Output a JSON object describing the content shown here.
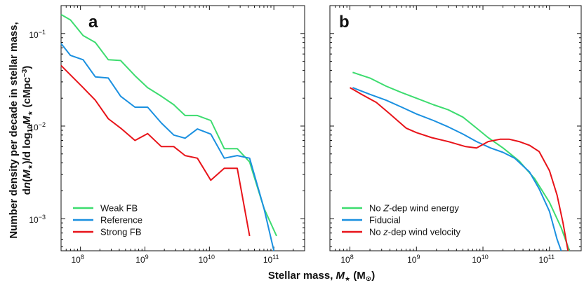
{
  "ylabel_line1": "Number density per decade in stellar mass,",
  "ylabel_line2_prefix": "d",
  "ylabel_line2_n": "n",
  "ylabel_line2_open": "(",
  "ylabel_line2_M": "M",
  "ylabel_line2_star": "★",
  "ylabel_line2_mid": ")/d log",
  "ylabel_line2_sub10": "10",
  "ylabel_line2_M2": "M",
  "ylabel_line2_star2": "★",
  "ylabel_line2_units": " (cMpc",
  "ylabel_line2_exp": "−3",
  "ylabel_line2_close": ")",
  "xlabel_prefix": "Stellar mass, ",
  "xlabel_M": "M",
  "xlabel_star": "★",
  "xlabel_units": " (M",
  "xlabel_sun": "⊙",
  "xlabel_close": ")",
  "chart_data": [
    {
      "type": "line",
      "panel": "a",
      "xscale": "log",
      "yscale": "log",
      "xlim": [
        50000000,
        300000000000
      ],
      "ylim": [
        0.00045,
        0.2
      ],
      "xticks": [
        {
          "base": "10",
          "exp": "8",
          "value": 100000000
        },
        {
          "base": "10",
          "exp": "9",
          "value": 1000000000
        },
        {
          "base": "10",
          "exp": "10",
          "value": 10000000000
        },
        {
          "base": "10",
          "exp": "11",
          "value": 100000000000
        }
      ],
      "yticks": [
        {
          "base": "10",
          "exp": "−1",
          "value": 0.1
        },
        {
          "base": "10",
          "exp": "−2",
          "value": 0.01
        },
        {
          "base": "10",
          "exp": "−3",
          "value": 0.001
        }
      ],
      "legend_position": "bottom-left",
      "series": [
        {
          "name": "Weak FB",
          "color": "#3ddc6f",
          "points": [
            [
              50000000,
              0.16
            ],
            [
              70000000,
              0.14
            ],
            [
              110000000,
              0.095
            ],
            [
              170000000,
              0.08
            ],
            [
              270000000,
              0.052
            ],
            [
              420000000,
              0.051
            ],
            [
              700000000,
              0.035
            ],
            [
              1100000000,
              0.026
            ],
            [
              1800000000,
              0.021
            ],
            [
              2800000000,
              0.017
            ],
            [
              4200000000,
              0.013
            ],
            [
              6500000000,
              0.013
            ],
            [
              10500000000,
              0.0115
            ],
            [
              17000000000,
              0.0057
            ],
            [
              27000000000,
              0.0057
            ],
            [
              42000000000,
              0.0041
            ],
            [
              70000000000,
              0.0013
            ],
            [
              110000000000,
              0.00065
            ]
          ]
        },
        {
          "name": "Reference",
          "color": "#1a90e0",
          "points": [
            [
              50000000,
              0.078
            ],
            [
              70000000,
              0.058
            ],
            [
              110000000,
              0.052
            ],
            [
              170000000,
              0.034
            ],
            [
              270000000,
              0.033
            ],
            [
              420000000,
              0.021
            ],
            [
              700000000,
              0.016
            ],
            [
              1100000000,
              0.016
            ],
            [
              1800000000,
              0.0108
            ],
            [
              2800000000,
              0.008
            ],
            [
              4200000000,
              0.0074
            ],
            [
              6500000000,
              0.0093
            ],
            [
              10500000000,
              0.0082
            ],
            [
              17000000000,
              0.0045
            ],
            [
              27000000000,
              0.0048
            ],
            [
              42000000000,
              0.0045
            ],
            [
              70000000000,
              0.0013
            ],
            [
              100000000000,
              0.00045
            ]
          ]
        },
        {
          "name": "Strong FB",
          "color": "#e8141a",
          "points": [
            [
              50000000,
              0.045
            ],
            [
              110000000,
              0.026
            ],
            [
              170000000,
              0.019
            ],
            [
              270000000,
              0.012
            ],
            [
              420000000,
              0.0095
            ],
            [
              700000000,
              0.007
            ],
            [
              1100000000,
              0.0083
            ],
            [
              1800000000,
              0.006
            ],
            [
              2800000000,
              0.006
            ],
            [
              4200000000,
              0.0048
            ],
            [
              6500000000,
              0.0045
            ],
            [
              10500000000,
              0.0026
            ],
            [
              17000000000,
              0.0035
            ],
            [
              27000000000,
              0.0035
            ],
            [
              42000000000,
              0.00065
            ]
          ]
        }
      ]
    },
    {
      "type": "line",
      "panel": "b",
      "xscale": "log",
      "yscale": "log",
      "xlim": [
        50000000,
        300000000000
      ],
      "ylim": [
        0.00045,
        0.2
      ],
      "xticks": [
        {
          "base": "10",
          "exp": "8",
          "value": 100000000
        },
        {
          "base": "10",
          "exp": "9",
          "value": 1000000000
        },
        {
          "base": "10",
          "exp": "10",
          "value": 10000000000
        },
        {
          "base": "10",
          "exp": "11",
          "value": 100000000000
        }
      ],
      "yticks": [],
      "legend_position": "bottom-left",
      "series": [
        {
          "name_parts": [
            "No ",
            "Z",
            "-dep wind energy"
          ],
          "color": "#3ddc6f",
          "points": [
            [
              110000000,
              0.038
            ],
            [
              200000000,
              0.033
            ],
            [
              350000000,
              0.027
            ],
            [
              600000000,
              0.023
            ],
            [
              1000000000,
              0.02
            ],
            [
              1800000000,
              0.017
            ],
            [
              3000000000,
              0.015
            ],
            [
              5000000000,
              0.0125
            ],
            [
              8000000000,
              0.0095
            ],
            [
              12000000000,
              0.0075
            ],
            [
              20000000000,
              0.0058
            ],
            [
              35000000000,
              0.0042
            ],
            [
              60000000000,
              0.0027
            ],
            [
              100000000000,
              0.0015
            ],
            [
              150000000000,
              0.0008
            ],
            [
              200000000000,
              0.00045
            ]
          ]
        },
        {
          "name_parts": [
            "Fiducial"
          ],
          "color": "#1a90e0",
          "points": [
            [
              110000000,
              0.026
            ],
            [
              200000000,
              0.022
            ],
            [
              350000000,
              0.019
            ],
            [
              600000000,
              0.016
            ],
            [
              1000000000,
              0.0135
            ],
            [
              1800000000,
              0.0115
            ],
            [
              3000000000,
              0.0098
            ],
            [
              5000000000,
              0.0082
            ],
            [
              8000000000,
              0.0068
            ],
            [
              13000000000,
              0.0058
            ],
            [
              20000000000,
              0.0052
            ],
            [
              30000000000,
              0.0045
            ],
            [
              50000000000,
              0.0032
            ],
            [
              70000000000,
              0.0021
            ],
            [
              100000000000,
              0.0012
            ],
            [
              130000000000,
              0.0006
            ],
            [
              150000000000,
              0.00045
            ]
          ]
        },
        {
          "name_parts": [
            "No ",
            "z",
            "-dep wind velocity"
          ],
          "color": "#e8141a",
          "points": [
            [
              100000000,
              0.026
            ],
            [
              150000000,
              0.022
            ],
            [
              250000000,
              0.018
            ],
            [
              400000000,
              0.0135
            ],
            [
              700000000,
              0.0095
            ],
            [
              1000000000,
              0.0085
            ],
            [
              1700000000,
              0.0075
            ],
            [
              3000000000,
              0.0068
            ],
            [
              5500000000,
              0.006
            ],
            [
              8000000000,
              0.0058
            ],
            [
              12000000000,
              0.0068
            ],
            [
              18000000000,
              0.0072
            ],
            [
              25000000000,
              0.0072
            ],
            [
              35000000000,
              0.0068
            ],
            [
              50000000000,
              0.0062
            ],
            [
              70000000000,
              0.0053
            ],
            [
              100000000000,
              0.0033
            ],
            [
              130000000000,
              0.0018
            ],
            [
              160000000000,
              0.0009
            ],
            [
              190000000000,
              0.00045
            ]
          ]
        }
      ]
    }
  ],
  "panel_letters": [
    "a",
    "b"
  ]
}
